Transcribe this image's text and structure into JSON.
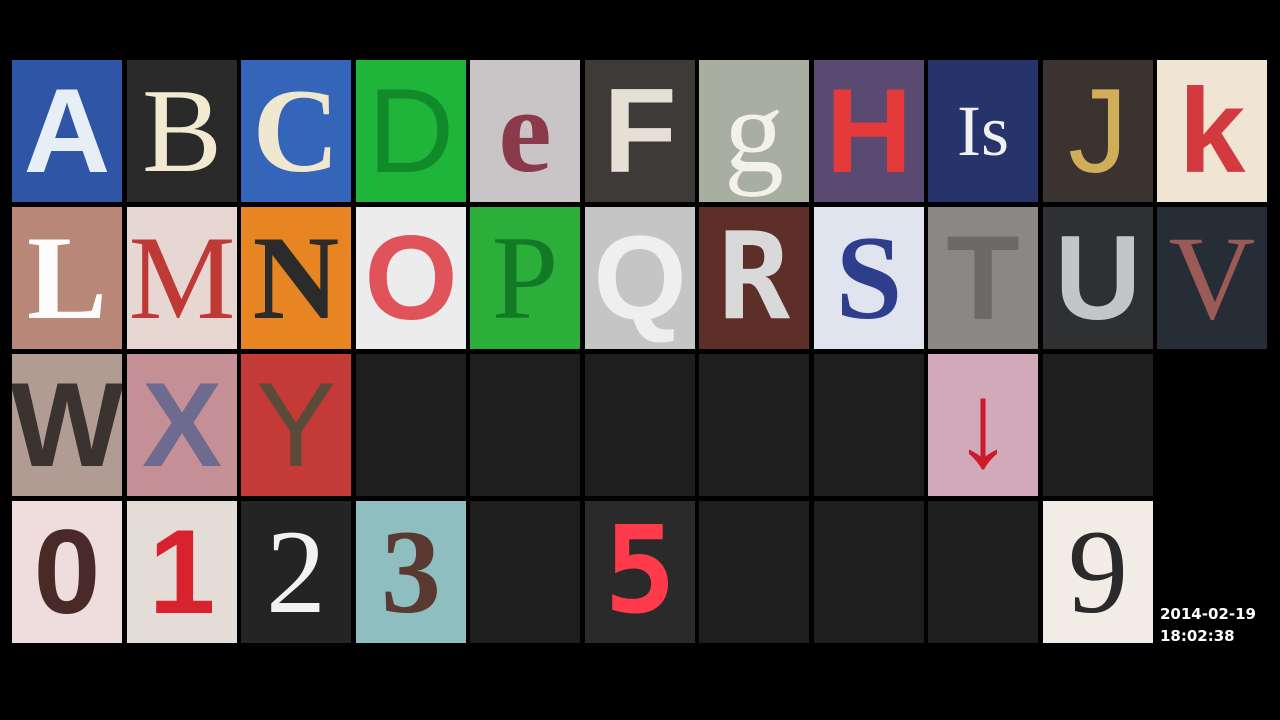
{
  "clock": {
    "date": "2014-02-19",
    "time": "18:02:38"
  },
  "rows": [
    [
      {
        "label": "A",
        "bg": "#2f56a6",
        "fg": "#e8eef5",
        "font": "sans",
        "weight": "bold",
        "icon": "letter-a-photo"
      },
      {
        "label": "B",
        "bg": "#2a2a2a",
        "fg": "#f2ead0",
        "font": "serif",
        "weight": "normal",
        "icon": "letter-b-photo"
      },
      {
        "label": "C",
        "bg": "#3565b8",
        "fg": "#efe7cf",
        "font": "serif",
        "weight": "bold",
        "icon": "letter-c-photo"
      },
      {
        "label": "D",
        "bg": "#1fb43a",
        "fg": "#118a2a",
        "font": "sans",
        "weight": "normal",
        "icon": "letter-d-photo"
      },
      {
        "label": "e",
        "bg": "#c9c4c6",
        "fg": "#8a3a4a",
        "font": "serif",
        "weight": "bold",
        "icon": "letter-e-photo"
      },
      {
        "label": "F",
        "bg": "#3d3a37",
        "fg": "#e5e0d6",
        "font": "sans",
        "weight": "bold",
        "icon": "letter-f-photo"
      },
      {
        "label": "g",
        "bg": "#a8aea0",
        "fg": "#f4f1ea",
        "font": "serif",
        "weight": "normal",
        "icon": "letter-g-photo"
      },
      {
        "label": "H",
        "bg": "#5a4a72",
        "fg": "#e43a3a",
        "font": "sans",
        "weight": "bold",
        "icon": "letter-h-photo"
      },
      {
        "label": "Is",
        "bg": "#27346b",
        "fg": "#f0f0f0",
        "font": "serif",
        "weight": "normal",
        "icon": "letter-i-photo"
      },
      {
        "label": "J",
        "bg": "#3b3330",
        "fg": "#d0ad58",
        "font": "sans",
        "weight": "normal",
        "icon": "letter-j-photo"
      },
      {
        "label": "k",
        "bg": "#efe5d2",
        "fg": "#d33a3f",
        "font": "sans",
        "weight": "bold",
        "icon": "letter-k-photo"
      }
    ],
    [
      {
        "label": "L",
        "bg": "#b98778",
        "fg": "#fbfbfb",
        "font": "serif",
        "weight": "bold",
        "icon": "letter-l-photo"
      },
      {
        "label": "M",
        "bg": "#e6d7d2",
        "fg": "#bf3a35",
        "font": "serif",
        "weight": "normal",
        "icon": "letter-m-photo"
      },
      {
        "label": "N",
        "bg": "#e78523",
        "fg": "#2b2b2b",
        "font": "serif",
        "weight": "bold",
        "icon": "letter-n-photo"
      },
      {
        "label": "O",
        "bg": "#ececec",
        "fg": "#e0535a",
        "font": "sans",
        "weight": "bold",
        "icon": "letter-o-photo"
      },
      {
        "label": "P",
        "bg": "#2cae3b",
        "fg": "#127a24",
        "font": "serif",
        "weight": "normal",
        "icon": "letter-p-photo"
      },
      {
        "label": "Q",
        "bg": "#c5c5c5",
        "fg": "#efefef",
        "font": "sans",
        "weight": "bold",
        "icon": "letter-q-photo"
      },
      {
        "label": "R",
        "bg": "#5e2e28",
        "fg": "#d9d9d9",
        "font": "mono",
        "weight": "bold",
        "icon": "letter-r-photo"
      },
      {
        "label": "S",
        "bg": "#dfe4ef",
        "fg": "#2e3e8c",
        "font": "serif",
        "weight": "bold",
        "icon": "letter-s-photo"
      },
      {
        "label": "T",
        "bg": "#8b8784",
        "fg": "#6c6966",
        "font": "sans",
        "weight": "bold",
        "icon": "letter-t-photo"
      },
      {
        "label": "U",
        "bg": "#2f3032",
        "fg": "#c3c6c9",
        "font": "sans",
        "weight": "bold",
        "icon": "letter-u-photo"
      },
      {
        "label": "V",
        "bg": "#272d36",
        "fg": "#9a5a55",
        "font": "serif",
        "weight": "normal",
        "icon": "letter-v-photo"
      }
    ],
    [
      {
        "label": "W",
        "bg": "#b09c92",
        "fg": "#3a3330",
        "font": "sans",
        "weight": "bold",
        "icon": "letter-w-photo"
      },
      {
        "label": "X",
        "bg": "#c58f96",
        "fg": "#6f6a8f",
        "font": "sans",
        "weight": "bold",
        "icon": "letter-x-photo"
      },
      {
        "label": "Y",
        "bg": "#c43a36",
        "fg": "#5a4a3a",
        "font": "sans",
        "weight": "normal",
        "icon": "letter-y-photo"
      },
      {
        "label": "",
        "bg": "",
        "fg": "",
        "font": "sans",
        "weight": "normal",
        "icon": ""
      },
      {
        "label": "",
        "bg": "",
        "fg": "",
        "font": "sans",
        "weight": "normal",
        "icon": ""
      },
      {
        "label": "",
        "bg": "",
        "fg": "",
        "font": "sans",
        "weight": "normal",
        "icon": ""
      },
      {
        "label": "",
        "bg": "",
        "fg": "",
        "font": "sans",
        "weight": "normal",
        "icon": ""
      },
      {
        "label": "",
        "bg": "",
        "fg": "",
        "font": "sans",
        "weight": "normal",
        "icon": ""
      },
      {
        "label": "↓",
        "bg": "#d2a9b8",
        "fg": "#cc1b2c",
        "font": "sans",
        "weight": "bold",
        "icon": "arrow-down-icon"
      },
      {
        "label": "",
        "bg": "",
        "fg": "",
        "font": "sans",
        "weight": "normal",
        "icon": ""
      }
    ],
    [
      {
        "label": "0",
        "bg": "#efdcdc",
        "fg": "#4a2a28",
        "font": "sans",
        "weight": "bold",
        "icon": "digit-0-photo"
      },
      {
        "label": "1",
        "bg": "#e4dcd6",
        "fg": "#d8232f",
        "font": "sans",
        "weight": "bold",
        "icon": "digit-1-photo"
      },
      {
        "label": "2",
        "bg": "#242424",
        "fg": "#f2f2f2",
        "font": "serif",
        "weight": "normal",
        "icon": "digit-2-photo"
      },
      {
        "label": "3",
        "bg": "#8fbec0",
        "fg": "#5a3a30",
        "font": "serif",
        "weight": "bold",
        "icon": "digit-3-photo"
      },
      {
        "label": "",
        "bg": "",
        "fg": "",
        "font": "sans",
        "weight": "normal",
        "icon": ""
      },
      {
        "label": "5",
        "bg": "#2a2a2a",
        "fg": "#ff3a4a",
        "font": "mono",
        "weight": "bold",
        "icon": "digit-5-photo"
      },
      {
        "label": "",
        "bg": "",
        "fg": "",
        "font": "sans",
        "weight": "normal",
        "icon": ""
      },
      {
        "label": "",
        "bg": "",
        "fg": "",
        "font": "sans",
        "weight": "normal",
        "icon": ""
      },
      {
        "label": "",
        "bg": "",
        "fg": "",
        "font": "sans",
        "weight": "normal",
        "icon": ""
      },
      {
        "label": "9",
        "bg": "#f1ede6",
        "fg": "#2a2a2a",
        "font": "serif",
        "weight": "normal",
        "icon": "digit-9-photo"
      }
    ]
  ]
}
